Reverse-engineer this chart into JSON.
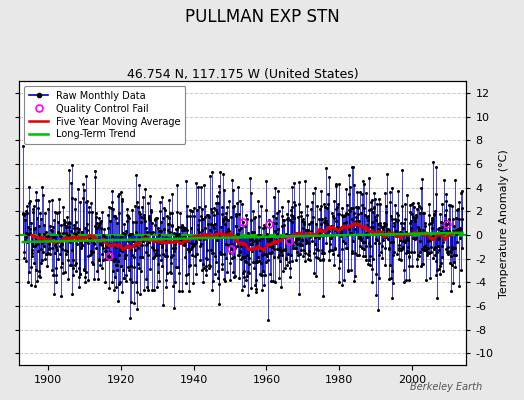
{
  "title": "PULLMAN EXP STN",
  "subtitle": "46.754 N, 117.175 W (United States)",
  "ylabel": "Temperature Anomaly (°C)",
  "watermark": "Berkeley Earth",
  "year_start": 1893,
  "year_end": 2013,
  "ylim": [
    -11,
    13
  ],
  "yticks_right": [
    -10,
    -8,
    -6,
    -4,
    -2,
    0,
    2,
    4,
    6,
    8,
    10,
    12
  ],
  "xticks": [
    1900,
    1920,
    1940,
    1960,
    1980,
    2000
  ],
  "raw_color": "#0000cc",
  "ma_color": "#dd0000",
  "trend_color": "#00bb00",
  "qc_color": "#ff00ff",
  "plot_bg": "#ffffff",
  "fig_bg": "#e8e8e8",
  "grid_color": "#cccccc",
  "legend_items": [
    {
      "label": "Raw Monthly Data"
    },
    {
      "label": "Quality Control Fail"
    },
    {
      "label": "Five Year Moving Average"
    },
    {
      "label": "Long-Term Trend"
    }
  ],
  "title_fontsize": 12,
  "subtitle_fontsize": 9,
  "tick_fontsize": 8,
  "ylabel_fontsize": 8
}
